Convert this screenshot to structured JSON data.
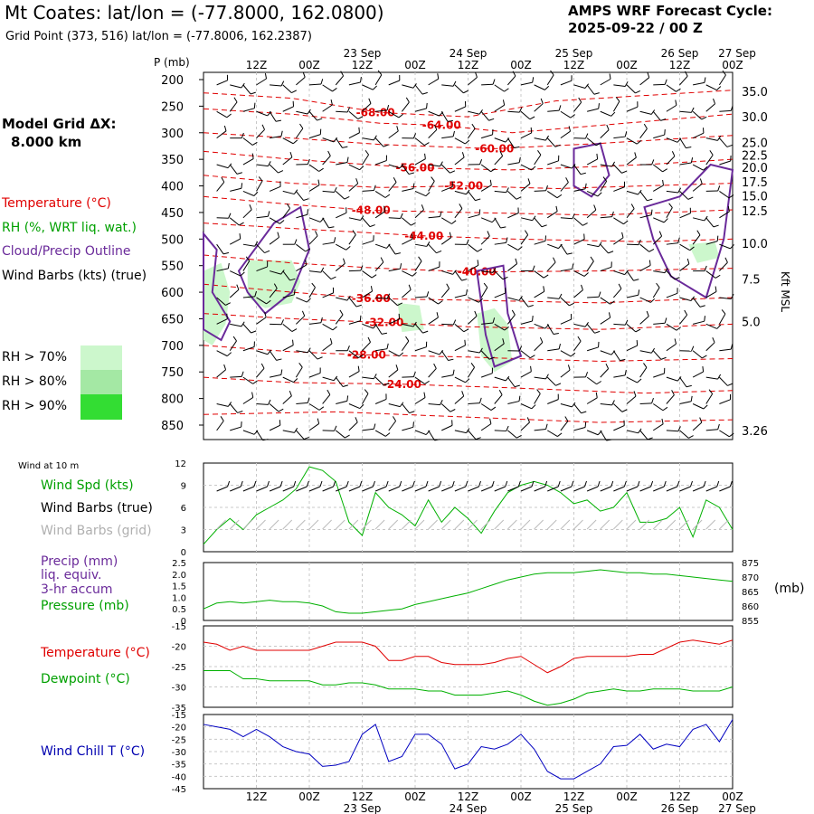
{
  "header": {
    "title": "Mt Coates:  lat/lon = (-77.8000, 162.0800)",
    "grid_point": "Grid Point (373, 516) lat/lon = (-77.8006, 162.2387)",
    "cycle_line1": "AMPS WRF Forecast Cycle:",
    "cycle_line2": "2025-09-22 / 00  Z"
  },
  "legend": {
    "model_grid_line1": "Model Grid ΔX:",
    "model_grid_line2": "8.000 km",
    "temperature": "Temperature (°C)",
    "rh": "RH (%, WRT liq. wat.)",
    "cloud": "Cloud/Precip Outline",
    "wind_barbs": "Wind Barbs (kts) (true)",
    "rh70": "RH > 70%",
    "rh80": "RH > 80%",
    "rh90": "RH > 90%",
    "pressure_label": "P (mb)",
    "kft_label": "Kft MSL",
    "wind10m": "Wind at 10 m",
    "wind_spd": "Wind Spd (kts)",
    "wind_barbs_true": "Wind Barbs (true)",
    "wind_barbs_grid": "Wind Barbs (grid)",
    "precip": "Precip (mm)",
    "liq_equiv": "liq. equiv.",
    "accum": "3-hr accum",
    "pressure": "Pressure (mb)",
    "mb_unit": "(mb)",
    "temp_panel": "Temperature (°C)",
    "dewpoint": "Dewpoint (°C)",
    "wind_chill": "Wind Chill T (°C)"
  },
  "colors": {
    "temp": "#e00000",
    "green": "#00b000",
    "cloud": "#6a2a9a",
    "chill": "#0000c0",
    "rh70": "#ccf7cc",
    "rh80": "#a4e8a4",
    "rh90": "#33dd33",
    "grid": "#c8c8c8"
  },
  "chart_data": [
    {
      "type": "contour",
      "name": "cross-section",
      "time_ticks_top": [
        "12Z",
        "00Z",
        "12Z",
        "00Z",
        "12Z",
        "00Z",
        "12Z",
        "00Z",
        "12Z",
        "00Z"
      ],
      "date_labels": [
        "23 Sep",
        "24 Sep",
        "25 Sep",
        "26 Sep",
        "27 Sep"
      ],
      "pressure_levels": [
        200,
        250,
        300,
        350,
        400,
        450,
        500,
        550,
        600,
        650,
        700,
        750,
        800,
        850
      ],
      "height_kft": [
        "35.0",
        "30.0",
        "25.0",
        "22.5",
        "20.0",
        "17.5",
        "15.0",
        "12.5",
        "10.0",
        "7.5",
        "5.0",
        "3.26"
      ],
      "height_kft_pressure": [
        222,
        270,
        318,
        342,
        365,
        392,
        419,
        447,
        508,
        575,
        655,
        860
      ],
      "temp_labels": [
        {
          "text": "-68.00",
          "hour": 39,
          "p": 262
        },
        {
          "text": "-64.00",
          "hour": 54,
          "p": 286
        },
        {
          "text": "-60.00",
          "hour": 66,
          "p": 330
        },
        {
          "text": "-56.00",
          "hour": 48,
          "p": 366
        },
        {
          "text": "-52.00",
          "hour": 59,
          "p": 400
        },
        {
          "text": "-48.00",
          "hour": 38,
          "p": 446
        },
        {
          "text": "-44.00",
          "hour": 50,
          "p": 494
        },
        {
          "text": "-40.00",
          "hour": 62,
          "p": 562
        },
        {
          "text": "-36.00",
          "hour": 38,
          "p": 612
        },
        {
          "text": "-32.00",
          "hour": 41,
          "p": 657
        },
        {
          "text": "-28.00",
          "hour": 37,
          "p": 718
        },
        {
          "text": "-24.00",
          "hour": 45,
          "p": 773
        }
      ]
    },
    {
      "type": "line",
      "name": "wind-speed",
      "ylim": [
        0,
        12
      ],
      "yticks": [
        "0",
        "3",
        "6",
        "9",
        "12"
      ],
      "x_hours": [
        0,
        3,
        6,
        9,
        12,
        15,
        18,
        21,
        24,
        27,
        30,
        33,
        36,
        39,
        42,
        45,
        48,
        51,
        54,
        57,
        60,
        63,
        66,
        69,
        72,
        75,
        78,
        81,
        84,
        87,
        90,
        93,
        96,
        99,
        102,
        105,
        108,
        111,
        114,
        117,
        120
      ],
      "series": [
        {
          "name": "Wind Spd (kts)",
          "values": [
            1,
            3,
            4.5,
            3,
            5,
            6,
            7,
            8.5,
            11.5,
            11,
            9.5,
            4,
            2.2,
            8,
            6,
            5,
            3.5,
            7,
            4,
            6,
            4.5,
            2.5,
            5.5,
            8,
            9,
            9.5,
            9,
            8,
            6.5,
            7,
            5.5,
            6,
            8,
            4,
            4,
            4.5,
            6,
            2,
            7,
            6,
            3
          ]
        }
      ]
    },
    {
      "type": "line",
      "name": "precip-pressure",
      "ylim_precip": [
        0,
        2.5
      ],
      "yticks_precip": [
        "0",
        "0.5",
        "1.0",
        "1.5",
        "2.0",
        "2.5"
      ],
      "ylim_pressure": [
        855,
        875
      ],
      "yticks_pressure": [
        "855",
        "860",
        "865",
        "870",
        "875"
      ],
      "series": [
        {
          "name": "Pressure (mb)",
          "values": [
            859,
            861,
            861.5,
            861,
            861.5,
            862,
            861.5,
            861.5,
            861,
            860,
            858,
            857.5,
            857.5,
            858,
            858.5,
            859,
            860.5,
            861.5,
            862.5,
            863.5,
            864.5,
            866,
            867.5,
            869,
            870,
            871,
            871.5,
            871.5,
            871.5,
            872,
            872.5,
            872,
            871.5,
            871.5,
            871,
            871,
            870.5,
            870,
            869.5,
            869,
            868.5
          ]
        }
      ]
    },
    {
      "type": "line",
      "name": "temperature-dewpoint",
      "ylim": [
        -35,
        -15
      ],
      "yticks": [
        "-35",
        "-30",
        "-25",
        "-20",
        "-15"
      ],
      "series": [
        {
          "name": "Temperature (°C)",
          "values": [
            -19,
            -19.5,
            -21,
            -20,
            -21,
            -21,
            -21,
            -21,
            -21,
            -20,
            -19,
            -19,
            -19,
            -20,
            -23.5,
            -23.5,
            -22.5,
            -22.5,
            -24,
            -24.5,
            -24.5,
            -24.5,
            -24,
            -23,
            -22.5,
            -24.5,
            -26.5,
            -25,
            -23,
            -22.5,
            -22.5,
            -22.5,
            -22.5,
            -22,
            -22,
            -20.5,
            -19,
            -18.5,
            -19,
            -19.5,
            -18.5
          ]
        },
        {
          "name": "Dewpoint (°C)",
          "values": [
            -26,
            -26,
            -26,
            -28,
            -28,
            -28.5,
            -28.5,
            -28.5,
            -28.5,
            -29.5,
            -29.5,
            -29,
            -29,
            -29.5,
            -30.5,
            -30.5,
            -30.5,
            -31,
            -31,
            -32,
            -32,
            -32,
            -31.5,
            -31,
            -32,
            -33.5,
            -34.5,
            -34,
            -33,
            -31.5,
            -31,
            -30.5,
            -31,
            -31,
            -30.5,
            -30.5,
            -30.5,
            -31,
            -31,
            -31,
            -30
          ]
        }
      ]
    },
    {
      "type": "line",
      "name": "wind-chill",
      "ylim": [
        -45,
        -15
      ],
      "yticks": [
        "-45",
        "-40",
        "-35",
        "-30",
        "-25",
        "-20",
        "-15"
      ],
      "series": [
        {
          "name": "Wind Chill T (°C)",
          "values": [
            -19,
            -20,
            -21,
            -24,
            -21,
            -24,
            -28,
            -30,
            -31,
            -36,
            -35.5,
            -34,
            -23,
            -19,
            -34,
            -32,
            -23,
            -23,
            -27,
            -37,
            -35,
            -28,
            -29,
            -27,
            -23,
            -29,
            -38,
            -41,
            -41,
            -38,
            -35,
            -28,
            -27.5,
            -23,
            -29,
            -27,
            -28,
            -21,
            -19,
            -26,
            -17
          ]
        }
      ]
    }
  ]
}
